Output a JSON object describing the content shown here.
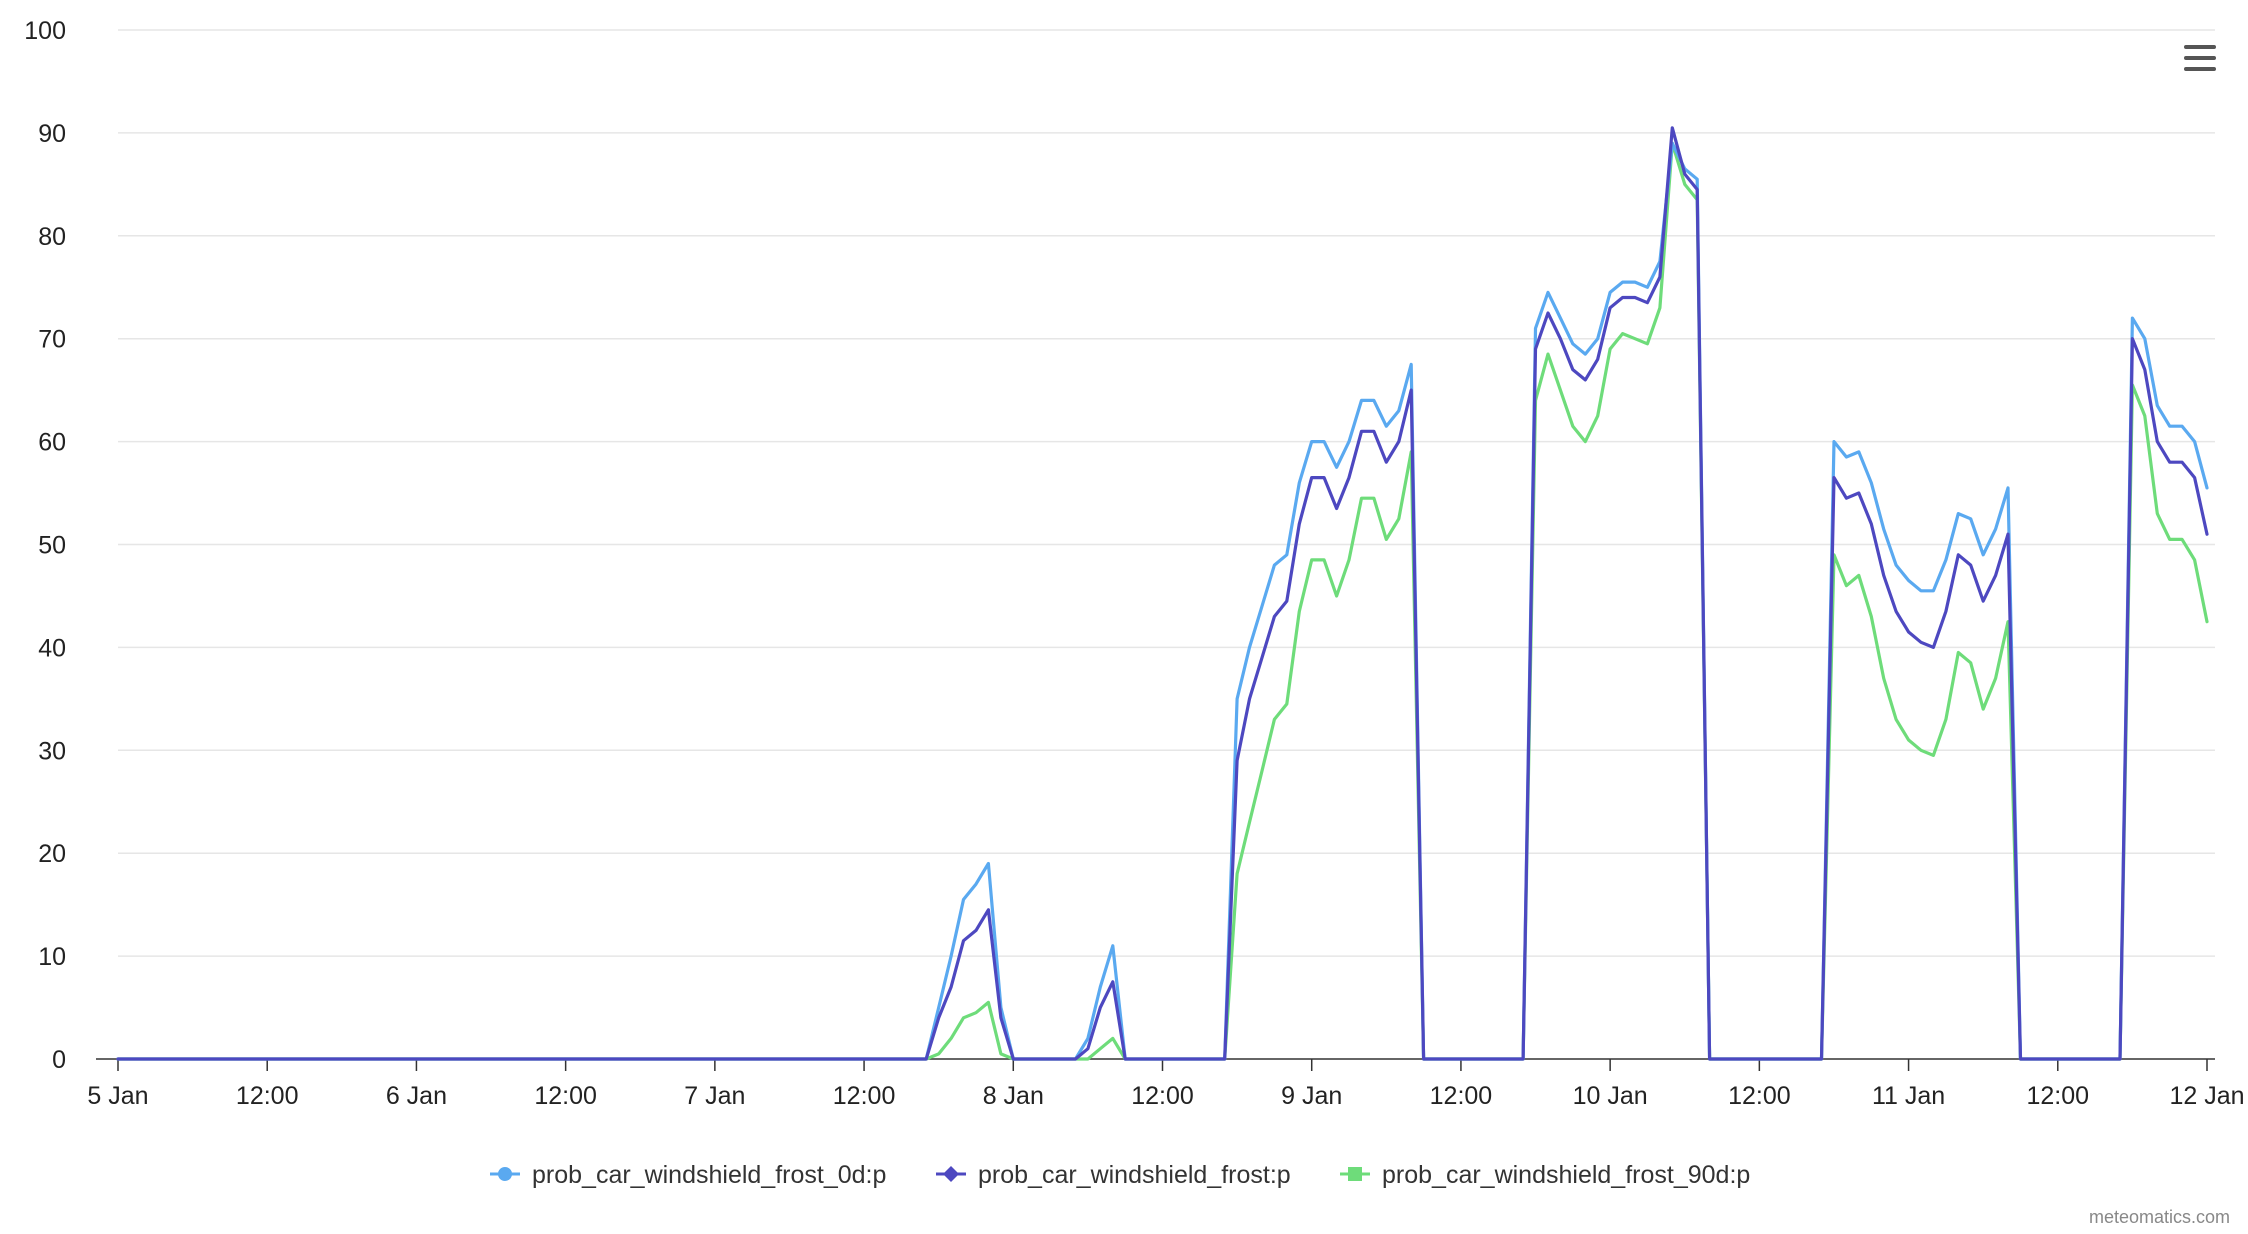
{
  "chart_data": {
    "type": "line",
    "title": "",
    "xlabel": "",
    "ylabel": "",
    "ylim": [
      0,
      100
    ],
    "y_ticks": [
      0,
      10,
      20,
      30,
      40,
      50,
      60,
      70,
      80,
      90,
      100
    ],
    "x_range_hours": [
      0,
      168
    ],
    "x_ticks": [
      {
        "label": "5 Jan",
        "hour": 0
      },
      {
        "label": "12:00",
        "hour": 12
      },
      {
        "label": "6 Jan",
        "hour": 24
      },
      {
        "label": "12:00",
        "hour": 36
      },
      {
        "label": "7 Jan",
        "hour": 48
      },
      {
        "label": "12:00",
        "hour": 60
      },
      {
        "label": "8 Jan",
        "hour": 72
      },
      {
        "label": "12:00",
        "hour": 84
      },
      {
        "label": "9 Jan",
        "hour": 96
      },
      {
        "label": "12:00",
        "hour": 108
      },
      {
        "label": "10 Jan",
        "hour": 120
      },
      {
        "label": "12:00",
        "hour": 132
      },
      {
        "label": "11 Jan",
        "hour": 144
      },
      {
        "label": "12:00",
        "hour": 156
      },
      {
        "label": "12 Jan",
        "hour": 168
      }
    ],
    "grid": true,
    "legend_position": "bottom-center",
    "series": [
      {
        "name": "prob_car_windshield_frost_0d:p",
        "color": "#5aa9f0",
        "marker": "circle",
        "points": [
          [
            0,
            0
          ],
          [
            65,
            0
          ],
          [
            66,
            5
          ],
          [
            67,
            10
          ],
          [
            68,
            15.5
          ],
          [
            69,
            17
          ],
          [
            70,
            19
          ],
          [
            71,
            5
          ],
          [
            72,
            0
          ],
          [
            77,
            0
          ],
          [
            78,
            2
          ],
          [
            79,
            7
          ],
          [
            80,
            11
          ],
          [
            81,
            0
          ],
          [
            89,
            0
          ],
          [
            90,
            35
          ],
          [
            91,
            40
          ],
          [
            92,
            44
          ],
          [
            93,
            48
          ],
          [
            94,
            49
          ],
          [
            95,
            56
          ],
          [
            96,
            60
          ],
          [
            97,
            60
          ],
          [
            98,
            57.5
          ],
          [
            99,
            60
          ],
          [
            100,
            64
          ],
          [
            101,
            64
          ],
          [
            102,
            61.5
          ],
          [
            103,
            63
          ],
          [
            104,
            67.5
          ],
          [
            105,
            0
          ],
          [
            113,
            0
          ],
          [
            114,
            71
          ],
          [
            115,
            74.5
          ],
          [
            116,
            72
          ],
          [
            117,
            69.5
          ],
          [
            118,
            68.5
          ],
          [
            119,
            70
          ],
          [
            120,
            74.5
          ],
          [
            121,
            75.5
          ],
          [
            122,
            75.5
          ],
          [
            123,
            75
          ],
          [
            124,
            77.5
          ],
          [
            125,
            89
          ],
          [
            126,
            86.5
          ],
          [
            127,
            85.5
          ],
          [
            128,
            0
          ],
          [
            137,
            0
          ],
          [
            138,
            60
          ],
          [
            139,
            58.5
          ],
          [
            140,
            59
          ],
          [
            141,
            56
          ],
          [
            142,
            51.5
          ],
          [
            143,
            48
          ],
          [
            144,
            46.5
          ],
          [
            145,
            45.5
          ],
          [
            146,
            45.5
          ],
          [
            147,
            48.5
          ],
          [
            148,
            53
          ],
          [
            149,
            52.5
          ],
          [
            150,
            49
          ],
          [
            151,
            51.5
          ],
          [
            152,
            55.5
          ],
          [
            153,
            0
          ],
          [
            161,
            0
          ],
          [
            162,
            72
          ],
          [
            163,
            70
          ],
          [
            164,
            63.5
          ],
          [
            165,
            61.5
          ],
          [
            166,
            61.5
          ],
          [
            167,
            60
          ],
          [
            168,
            55.5
          ]
        ]
      },
      {
        "name": "prob_car_windshield_frost:p",
        "color": "#4d48c0",
        "marker": "diamond",
        "points": [
          [
            0,
            0
          ],
          [
            65,
            0
          ],
          [
            66,
            4
          ],
          [
            67,
            7
          ],
          [
            68,
            11.5
          ],
          [
            69,
            12.5
          ],
          [
            70,
            14.5
          ],
          [
            71,
            4
          ],
          [
            72,
            0
          ],
          [
            77,
            0
          ],
          [
            78,
            1
          ],
          [
            79,
            5
          ],
          [
            80,
            7.5
          ],
          [
            81,
            0
          ],
          [
            89,
            0
          ],
          [
            90,
            29
          ],
          [
            91,
            35
          ],
          [
            92,
            39
          ],
          [
            93,
            43
          ],
          [
            94,
            44.5
          ],
          [
            95,
            52
          ],
          [
            96,
            56.5
          ],
          [
            97,
            56.5
          ],
          [
            98,
            53.5
          ],
          [
            99,
            56.5
          ],
          [
            100,
            61
          ],
          [
            101,
            61
          ],
          [
            102,
            58
          ],
          [
            103,
            60
          ],
          [
            104,
            65
          ],
          [
            105,
            0
          ],
          [
            113,
            0
          ],
          [
            114,
            69
          ],
          [
            115,
            72.5
          ],
          [
            116,
            70
          ],
          [
            117,
            67
          ],
          [
            118,
            66
          ],
          [
            119,
            68
          ],
          [
            120,
            73
          ],
          [
            121,
            74
          ],
          [
            122,
            74
          ],
          [
            123,
            73.5
          ],
          [
            124,
            76
          ],
          [
            125,
            90.5
          ],
          [
            126,
            86
          ],
          [
            127,
            84.5
          ],
          [
            128,
            0
          ],
          [
            137,
            0
          ],
          [
            138,
            56.5
          ],
          [
            139,
            54.5
          ],
          [
            140,
            55
          ],
          [
            141,
            52
          ],
          [
            142,
            47
          ],
          [
            143,
            43.5
          ],
          [
            144,
            41.5
          ],
          [
            145,
            40.5
          ],
          [
            146,
            40
          ],
          [
            147,
            43.5
          ],
          [
            148,
            49
          ],
          [
            149,
            48
          ],
          [
            150,
            44.5
          ],
          [
            151,
            47
          ],
          [
            152,
            51
          ],
          [
            153,
            0
          ],
          [
            161,
            0
          ],
          [
            162,
            70
          ],
          [
            163,
            67
          ],
          [
            164,
            60
          ],
          [
            165,
            58
          ],
          [
            166,
            58
          ],
          [
            167,
            56.5
          ],
          [
            168,
            51
          ]
        ]
      },
      {
        "name": "prob_car_windshield_frost_90d:p",
        "color": "#6edc7a",
        "marker": "square",
        "points": [
          [
            0,
            0
          ],
          [
            65,
            0
          ],
          [
            66,
            0.5
          ],
          [
            67,
            2
          ],
          [
            68,
            4
          ],
          [
            69,
            4.5
          ],
          [
            70,
            5.5
          ],
          [
            71,
            0.5
          ],
          [
            72,
            0
          ],
          [
            77,
            0
          ],
          [
            78,
            0
          ],
          [
            79,
            1
          ],
          [
            80,
            2
          ],
          [
            81,
            0
          ],
          [
            89,
            0
          ],
          [
            90,
            18
          ],
          [
            91,
            23
          ],
          [
            92,
            28
          ],
          [
            93,
            33
          ],
          [
            94,
            34.5
          ],
          [
            95,
            43.5
          ],
          [
            96,
            48.5
          ],
          [
            97,
            48.5
          ],
          [
            98,
            45
          ],
          [
            99,
            48.5
          ],
          [
            100,
            54.5
          ],
          [
            101,
            54.5
          ],
          [
            102,
            50.5
          ],
          [
            103,
            52.5
          ],
          [
            104,
            59
          ],
          [
            105,
            0
          ],
          [
            113,
            0
          ],
          [
            114,
            64
          ],
          [
            115,
            68.5
          ],
          [
            116,
            65
          ],
          [
            117,
            61.5
          ],
          [
            118,
            60
          ],
          [
            119,
            62.5
          ],
          [
            120,
            69
          ],
          [
            121,
            70.5
          ],
          [
            122,
            70
          ],
          [
            123,
            69.5
          ],
          [
            124,
            73
          ],
          [
            125,
            89
          ],
          [
            126,
            85
          ],
          [
            127,
            83.5
          ],
          [
            128,
            0
          ],
          [
            137,
            0
          ],
          [
            138,
            49
          ],
          [
            139,
            46
          ],
          [
            140,
            47
          ],
          [
            141,
            43
          ],
          [
            142,
            37
          ],
          [
            143,
            33
          ],
          [
            144,
            31
          ],
          [
            145,
            30
          ],
          [
            146,
            29.5
          ],
          [
            147,
            33
          ],
          [
            148,
            39.5
          ],
          [
            149,
            38.5
          ],
          [
            150,
            34
          ],
          [
            151,
            37
          ],
          [
            152,
            42.5
          ],
          [
            153,
            0
          ],
          [
            161,
            0
          ],
          [
            162,
            65.5
          ],
          [
            163,
            62.5
          ],
          [
            164,
            53
          ],
          [
            165,
            50.5
          ],
          [
            166,
            50.5
          ],
          [
            167,
            48.5
          ],
          [
            168,
            42.5
          ]
        ]
      }
    ]
  },
  "credit": "meteomatics.com",
  "menu_icon": "hamburger-menu-icon"
}
